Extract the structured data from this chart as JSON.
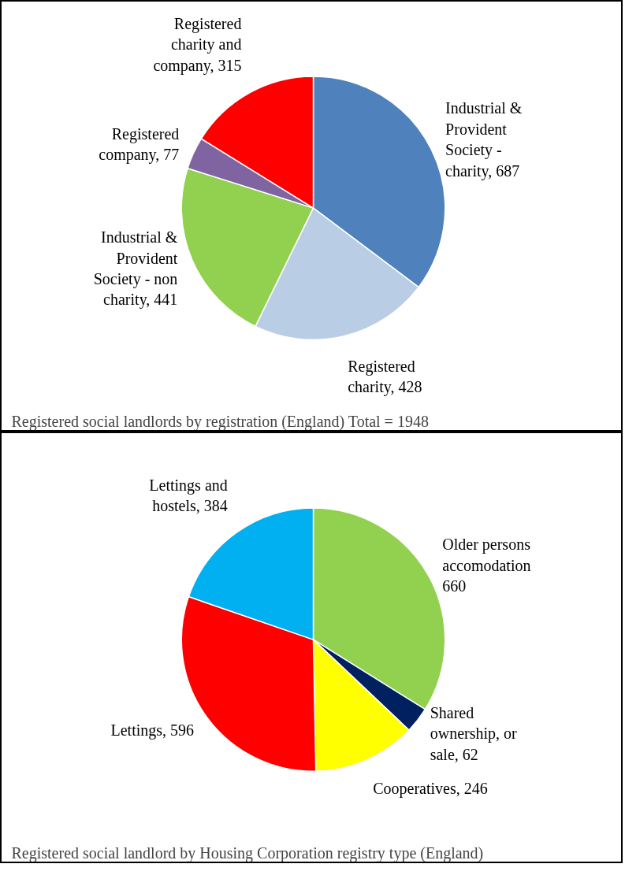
{
  "chart_data": [
    {
      "type": "pie",
      "title": "Registered social landlords by registration (England) Total = 1948",
      "categories": [
        "Industrial & Provident Society - charity",
        "Registered charity",
        "Industrial & Provident Society - non charity",
        "Registered company",
        "Registered charity and company"
      ],
      "values": [
        687,
        428,
        441,
        77,
        315
      ],
      "value_labels": [
        "687",
        "428",
        "441",
        "77",
        "315"
      ],
      "colors": [
        "#4f81bd",
        "#b9cde5",
        "#92d050",
        "#8064a2",
        "#ff0000"
      ],
      "data_labels": true
    },
    {
      "type": "pie",
      "title": "Registered social landlord by Housing Corporation registry type (England)",
      "categories": [
        "Older persons accomodation",
        "Shared ownership, or sale",
        "Cooperatives",
        "Lettings",
        "Lettings and hostels"
      ],
      "values": [
        660,
        62,
        246,
        596,
        384
      ],
      "value_labels": [
        "660",
        "62",
        "246",
        "596",
        "384"
      ],
      "colors": [
        "#92d050",
        "#002060",
        "#ffff00",
        "#ff0000",
        "#00b0f0"
      ],
      "data_labels": true
    }
  ]
}
